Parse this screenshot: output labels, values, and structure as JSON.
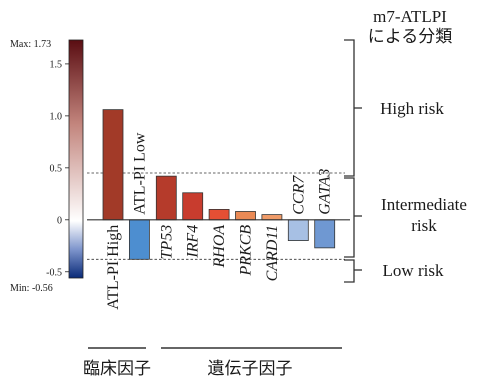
{
  "chart_data": {
    "type": "bar",
    "title": "m7-ATLPI\nによる分類",
    "colorbar": {
      "max_label": "Max: 1.73",
      "min_label": "Min: -0.56",
      "max": 1.73,
      "min": -0.56,
      "ticks": [
        1.5,
        1.0,
        0.5,
        0,
        -0.5
      ],
      "tick_labels": [
        "1.5",
        "1.0",
        "0.5",
        "0",
        "-0.5"
      ]
    },
    "categories": [
      "ATL-PI High",
      "ATL-PI Low",
      "TP53",
      "IRF4",
      "RHOA",
      "PRKCB",
      "CARD11",
      "CCR7",
      "GATA3"
    ],
    "italic": [
      false,
      false,
      true,
      true,
      true,
      true,
      true,
      true,
      true
    ],
    "values": [
      1.06,
      -0.38,
      0.42,
      0.26,
      0.1,
      0.08,
      0.05,
      -0.2,
      -0.27
    ],
    "colors": [
      "#a23a28",
      "#4d8ed0",
      "#b53b2b",
      "#c83c2e",
      "#e44f34",
      "#ea8a55",
      "#ef9b68",
      "#a7c0e4",
      "#6f98d2"
    ],
    "thresholds": [
      0.45,
      -0.38
    ],
    "groups": [
      "臨床因子",
      "遺伝子因子"
    ],
    "risk_groups": [
      "High risk",
      "Intermediate\nrisk",
      "Low risk"
    ]
  }
}
